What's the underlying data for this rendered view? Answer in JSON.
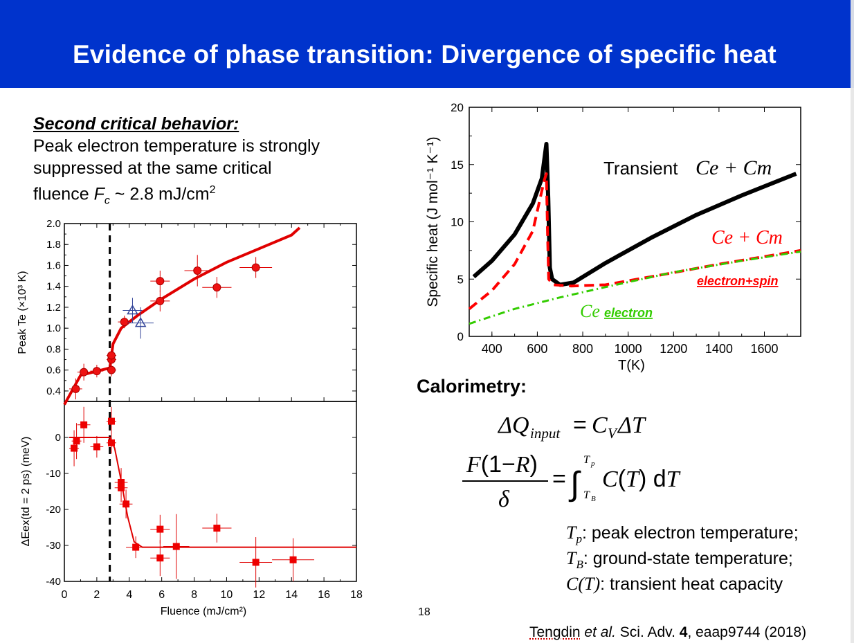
{
  "slide": {
    "title": "Evidence of phase transition: Divergence of specific heat",
    "page_number": "18"
  },
  "left_text": {
    "heading": "Second critical behavior:",
    "line1": "Peak electron temperature is strongly",
    "line2": "suppressed at the same critical",
    "line3_pre": "fluence ",
    "line3_sym": "F",
    "line3_sub": "c",
    "line3_post": " ~ 2.8 mJ/cm",
    "line3_sup": "2"
  },
  "calorimetry": {
    "heading": "Calorimetry:",
    "eq1": "ΔQinput = CVΔT",
    "eq2": "F(1−R)/δ = ∫ TB→Tp C(T) dT"
  },
  "definitions": [
    {
      "sym": "T",
      "sub": "p",
      "text": ": peak electron temperature;"
    },
    {
      "sym": "T",
      "sub": "B",
      "text": ": ground-state temperature;"
    },
    {
      "sym": "C(T)",
      "sub": "",
      "text": ": transient heat capacity"
    }
  ],
  "citation": {
    "author": "Tengdin",
    "etal": " et al.",
    "journal": " Sci. Adv. ",
    "volume": "4",
    "rest": ", eaap9744 (2018)"
  },
  "chart_data": [
    {
      "type": "scatter",
      "name": "peak-electron-temperature",
      "ylabel": "Peak Te (×10³ K)",
      "xlim": [
        0,
        18
      ],
      "ylim": [
        0.3,
        2.0
      ],
      "yticks": [
        "0.4",
        "0.6",
        "0.8",
        "1.0",
        "1.2",
        "1.4",
        "1.6",
        "1.8",
        "2.0"
      ],
      "critical_fluence": 2.8,
      "points": [
        [
          0.7,
          0.42
        ],
        [
          1.2,
          0.58
        ],
        [
          2.0,
          0.59
        ],
        [
          2.9,
          0.6
        ],
        [
          2.9,
          0.7
        ],
        [
          2.9,
          0.74
        ],
        [
          3.7,
          1.06
        ],
        [
          5.9,
          1.26
        ],
        [
          5.9,
          1.45
        ],
        [
          8.2,
          1.55
        ],
        [
          9.4,
          1.39
        ],
        [
          11.8,
          1.58
        ]
      ],
      "xerr": [
        0.4,
        0.4,
        0.4,
        0.3,
        0.3,
        0.3,
        0.4,
        0.6,
        0.6,
        0.8,
        0.9,
        1.0
      ],
      "yerr": [
        0.1,
        0.08,
        0.06,
        0.06,
        0.06,
        0.06,
        0.06,
        0.1,
        0.1,
        0.15,
        0.1,
        0.1
      ],
      "triangles": [
        [
          4.2,
          1.17
        ],
        [
          4.7,
          1.05
        ]
      ],
      "triangle_xerr": [
        0.6,
        0.8
      ],
      "triangle_yerr": [
        0.12,
        0.15
      ],
      "fit": [
        [
          0,
          0.27
        ],
        [
          1,
          0.55
        ],
        [
          2.8,
          0.62
        ],
        [
          3.0,
          0.85
        ],
        [
          3.5,
          1.0
        ],
        [
          4.5,
          1.12
        ],
        [
          6,
          1.28
        ],
        [
          8,
          1.47
        ],
        [
          10,
          1.63
        ],
        [
          12,
          1.76
        ],
        [
          14,
          1.89
        ],
        [
          14.5,
          1.96
        ]
      ]
    },
    {
      "type": "scatter",
      "name": "exchange-energy-change",
      "xlabel": "Fluence (mJ/cm²)",
      "ylabel": "ΔEex(td = 2 ps) (meV)",
      "xlim": [
        0,
        18
      ],
      "ylim": [
        -40,
        10
      ],
      "xticks": [
        "0",
        "2",
        "4",
        "6",
        "8",
        "10",
        "12",
        "14",
        "16",
        "18"
      ],
      "yticks": [
        "0",
        "-10",
        "-20",
        "-30",
        "-40"
      ],
      "points": [
        [
          0.6,
          -3
        ],
        [
          0.75,
          -1
        ],
        [
          1.2,
          3.5
        ],
        [
          2.0,
          -2.6
        ],
        [
          2.9,
          4.5
        ],
        [
          2.9,
          -1.5
        ],
        [
          3.5,
          -12.5
        ],
        [
          3.5,
          -14
        ],
        [
          3.8,
          -18.5
        ],
        [
          4.4,
          -30.5
        ],
        [
          5.9,
          -25.5
        ],
        [
          5.9,
          -33.5
        ],
        [
          6.9,
          -30.3
        ],
        [
          9.4,
          -25.2
        ],
        [
          11.8,
          -34.7
        ],
        [
          14.1,
          -34
        ]
      ],
      "xerr": [
        0.3,
        0.3,
        0.4,
        0.4,
        0.3,
        0.3,
        0.4,
        0.4,
        0.4,
        0.6,
        0.6,
        0.6,
        0.8,
        0.9,
        1.0,
        1.3
      ],
      "yerr": [
        5,
        5,
        5,
        3,
        4,
        3,
        4,
        4,
        4,
        3,
        4,
        5,
        9,
        4,
        7,
        6
      ],
      "fit": [
        [
          0.3,
          0
        ],
        [
          2.8,
          0
        ],
        [
          3.1,
          -3
        ],
        [
          3.5,
          -12
        ],
        [
          3.9,
          -22
        ],
        [
          4.3,
          -29
        ],
        [
          4.8,
          -30.5
        ],
        [
          18,
          -30.5
        ]
      ]
    },
    {
      "type": "line",
      "name": "specific-heat",
      "xlabel": "T(K)",
      "ylabel": "Specific heat (J mol⁻¹ K⁻¹)",
      "xlim": [
        300,
        1760
      ],
      "ylim": [
        0,
        20
      ],
      "xticks": [
        "400",
        "600",
        "800",
        "1000",
        "1200",
        "1400",
        "1600"
      ],
      "yticks": [
        "0",
        "5",
        "10",
        "15",
        "20"
      ],
      "series": [
        {
          "name": "Transient Ce + Cm",
          "color": "#000000",
          "points": [
            [
              320,
              5.2
            ],
            [
              400,
              6.6
            ],
            [
              500,
              8.9
            ],
            [
              580,
              11.6
            ],
            [
              620,
              13.8
            ],
            [
              640,
              16.8
            ],
            [
              648,
              12
            ],
            [
              655,
              6
            ],
            [
              665,
              5
            ],
            [
              700,
              4.5
            ],
            [
              760,
              4.7
            ],
            [
              900,
              6.4
            ],
            [
              1100,
              8.6
            ],
            [
              1300,
              10.6
            ],
            [
              1500,
              12.3
            ],
            [
              1740,
              14.2
            ]
          ]
        },
        {
          "name": "Ce + Cm",
          "color": "#ff0000",
          "points": [
            [
              300,
              2.4
            ],
            [
              400,
              4.0
            ],
            [
              500,
              6.3
            ],
            [
              580,
              9.2
            ],
            [
              630,
              13.6
            ],
            [
              640,
              14.2
            ],
            [
              645,
              9
            ],
            [
              650,
              5
            ],
            [
              670,
              4.5
            ],
            [
              750,
              4.4
            ],
            [
              900,
              4.5
            ],
            [
              1100,
              5.2
            ],
            [
              1400,
              6.3
            ],
            [
              1760,
              7.5
            ]
          ]
        },
        {
          "name": "Ce",
          "color": "#33cc00",
          "points": [
            [
              300,
              1.1
            ],
            [
              500,
              2.4
            ],
            [
              700,
              3.4
            ],
            [
              900,
              4.3
            ],
            [
              1200,
              5.6
            ],
            [
              1500,
              6.6
            ],
            [
              1760,
              7.4
            ]
          ]
        }
      ],
      "annotations": [
        "Transient",
        "Ce + Cm",
        "electron+spin",
        "Ce",
        "electron"
      ]
    }
  ]
}
